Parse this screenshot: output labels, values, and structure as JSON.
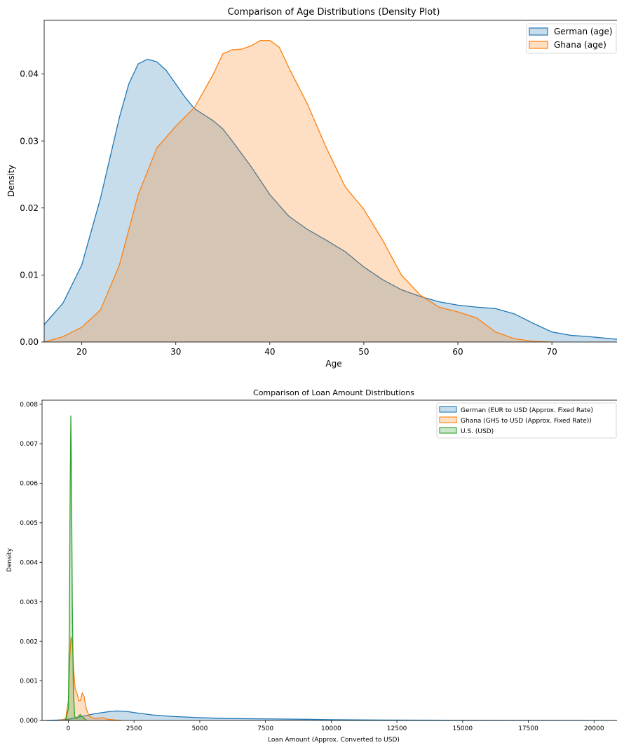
{
  "chart_data": [
    {
      "type": "area",
      "title": "Comparison of Age Distributions (Density Plot)",
      "xlabel": "Age",
      "ylabel": "Density",
      "xlim": [
        16,
        77
      ],
      "ylim": [
        0,
        0.048
      ],
      "xticks": [
        20,
        30,
        40,
        50,
        60,
        70
      ],
      "yticks": [
        0.0,
        0.01,
        0.02,
        0.03,
        0.04
      ],
      "ytick_labels": [
        "0.00",
        "0.01",
        "0.02",
        "0.03",
        "0.04"
      ],
      "grid": false,
      "legend_position": "top-right",
      "series": [
        {
          "name": "German (age)",
          "color": "#1f77b4",
          "points": [
            [
              16,
              0.0026
            ],
            [
              18,
              0.0058
            ],
            [
              20,
              0.0115
            ],
            [
              22,
              0.0215
            ],
            [
              24,
              0.0335
            ],
            [
              25,
              0.0385
            ],
            [
              26,
              0.0415
            ],
            [
              27,
              0.0422
            ],
            [
              28,
              0.0418
            ],
            [
              29,
              0.0405
            ],
            [
              30,
              0.0385
            ],
            [
              31,
              0.0365
            ],
            [
              32,
              0.0348
            ],
            [
              34,
              0.033
            ],
            [
              35,
              0.0318
            ],
            [
              36,
              0.03
            ],
            [
              38,
              0.0262
            ],
            [
              40,
              0.022
            ],
            [
              42,
              0.0188
            ],
            [
              44,
              0.0168
            ],
            [
              46,
              0.0152
            ],
            [
              48,
              0.0135
            ],
            [
              50,
              0.0112
            ],
            [
              52,
              0.0093
            ],
            [
              54,
              0.0078
            ],
            [
              56,
              0.0068
            ],
            [
              58,
              0.006
            ],
            [
              60,
              0.0055
            ],
            [
              62,
              0.0052
            ],
            [
              64,
              0.005
            ],
            [
              66,
              0.0042
            ],
            [
              68,
              0.0028
            ],
            [
              70,
              0.0015
            ],
            [
              72,
              0.001
            ],
            [
              74,
              0.0008
            ],
            [
              77,
              0.0004
            ]
          ]
        },
        {
          "name": "Ghana (age)",
          "color": "#ff7f0e",
          "points": [
            [
              16,
              0.0
            ],
            [
              18,
              0.0008
            ],
            [
              20,
              0.0022
            ],
            [
              22,
              0.0048
            ],
            [
              24,
              0.0115
            ],
            [
              26,
              0.022
            ],
            [
              28,
              0.029
            ],
            [
              30,
              0.0322
            ],
            [
              32,
              0.035
            ],
            [
              34,
              0.04
            ],
            [
              35,
              0.043
            ],
            [
              36,
              0.0436
            ],
            [
              37,
              0.0437
            ],
            [
              38,
              0.0442
            ],
            [
              39,
              0.045
            ],
            [
              40,
              0.045
            ],
            [
              41,
              0.044
            ],
            [
              42,
              0.041
            ],
            [
              44,
              0.0355
            ],
            [
              46,
              0.029
            ],
            [
              48,
              0.0232
            ],
            [
              50,
              0.0198
            ],
            [
              52,
              0.0152
            ],
            [
              54,
              0.01
            ],
            [
              56,
              0.007
            ],
            [
              58,
              0.0052
            ],
            [
              60,
              0.0045
            ],
            [
              62,
              0.0036
            ],
            [
              64,
              0.0015
            ],
            [
              66,
              0.0005
            ],
            [
              68,
              0.0001
            ],
            [
              70,
              0.0
            ]
          ]
        }
      ]
    },
    {
      "type": "area",
      "title": "Comparison of Loan Amount Distributions",
      "xlabel": "Loan Amount (Approx. Converted to USD)",
      "ylabel": "Density",
      "xlim": [
        -1000,
        20900
      ],
      "ylim": [
        0,
        0.0081
      ],
      "xticks": [
        0,
        2500,
        5000,
        7500,
        10000,
        12500,
        15000,
        17500,
        20000
      ],
      "yticks": [
        0.0,
        0.001,
        0.002,
        0.003,
        0.004,
        0.005,
        0.006,
        0.007,
        0.008
      ],
      "ytick_labels": [
        "0.000",
        "0.001",
        "0.002",
        "0.003",
        "0.004",
        "0.005",
        "0.006",
        "0.007",
        "0.008"
      ],
      "grid": false,
      "legend_position": "top-right",
      "series": [
        {
          "name": "German (EUR to USD (Approx. Fixed Rate)",
          "color": "#1f77b4",
          "points": [
            [
              -1000,
              0.0
            ],
            [
              -400,
              1e-05
            ],
            [
              0,
              3e-05
            ],
            [
              500,
              0.0001
            ],
            [
              1000,
              0.00017
            ],
            [
              1500,
              0.00022
            ],
            [
              1800,
              0.00024
            ],
            [
              2200,
              0.00023
            ],
            [
              2600,
              0.00019
            ],
            [
              3200,
              0.00014
            ],
            [
              4000,
              0.0001
            ],
            [
              5000,
              7e-05
            ],
            [
              6000,
              5e-05
            ],
            [
              7500,
              4e-05
            ],
            [
              9000,
              3e-05
            ],
            [
              10000,
              2e-05
            ],
            [
              12000,
              1e-05
            ],
            [
              15000,
              5e-06
            ],
            [
              18500,
              2e-06
            ],
            [
              20900,
              0.0
            ]
          ]
        },
        {
          "name": "Ghana (GHS to USD (Approx. Fixed Rate))",
          "color": "#ff7f0e",
          "points": [
            [
              -300,
              0.0
            ],
            [
              -100,
              5e-05
            ],
            [
              0,
              0.0005
            ],
            [
              50,
              0.0015
            ],
            [
              100,
              0.0021
            ],
            [
              150,
              0.002
            ],
            [
              200,
              0.0013
            ],
            [
              260,
              0.0008
            ],
            [
              320,
              0.0007
            ],
            [
              400,
              0.0005
            ],
            [
              460,
              0.0005
            ],
            [
              530,
              0.0007
            ],
            [
              600,
              0.0006
            ],
            [
              680,
              0.0003
            ],
            [
              800,
              0.0001
            ],
            [
              1000,
              5e-05
            ],
            [
              1300,
              7e-05
            ],
            [
              1500,
              3e-05
            ],
            [
              1800,
              1e-05
            ],
            [
              2100,
              0.0
            ]
          ]
        },
        {
          "name": "U.S. (USD)",
          "color": "#2ca02c",
          "points": [
            [
              -100,
              0.0
            ],
            [
              0,
              0.0003
            ],
            [
              40,
              0.0025
            ],
            [
              70,
              0.006
            ],
            [
              95,
              0.0077
            ],
            [
              120,
              0.006
            ],
            [
              150,
              0.003
            ],
            [
              190,
              0.0008
            ],
            [
              240,
              0.0001
            ],
            [
              300,
              5e-05
            ],
            [
              380,
              0.0001
            ],
            [
              450,
              0.00015
            ],
            [
              520,
              0.0001
            ],
            [
              600,
              5e-05
            ],
            [
              700,
              0.0
            ]
          ]
        }
      ]
    }
  ]
}
